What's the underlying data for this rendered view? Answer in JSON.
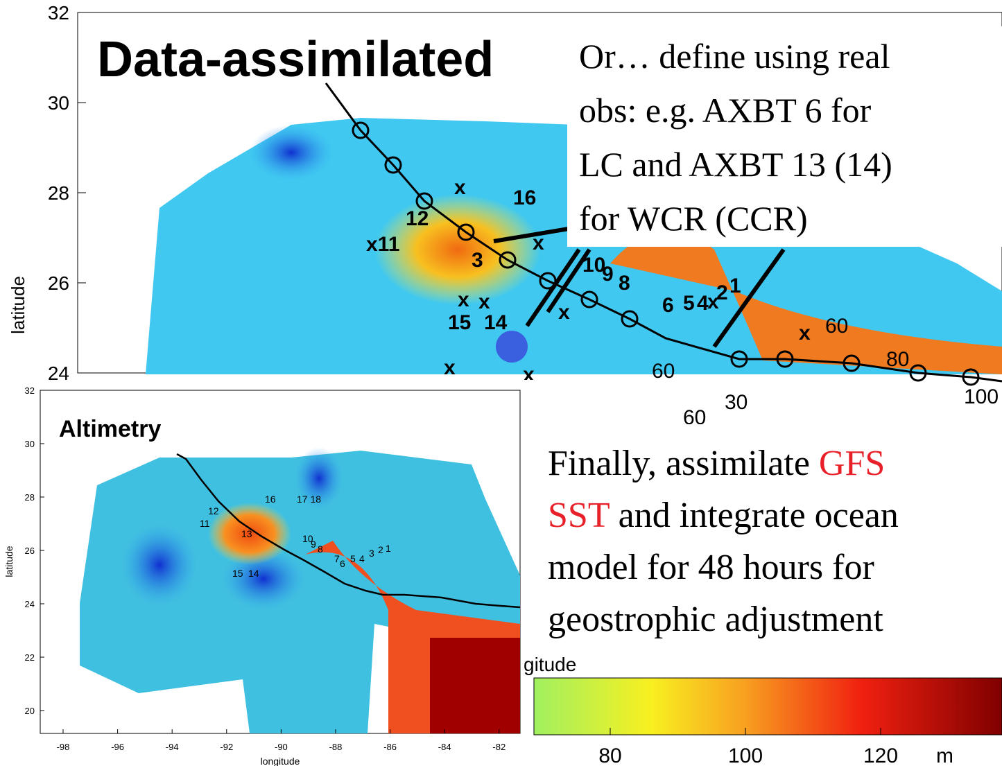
{
  "main_map": {
    "title": "Data-assimilated",
    "y_axis_label": "latitude",
    "y_ticks": [
      "24",
      "26",
      "28",
      "30",
      "32"
    ],
    "station_labels": [
      "x",
      "16",
      "12",
      "x11",
      "x",
      "3",
      "10",
      "9",
      "8",
      "6",
      "5",
      "4",
      "x",
      "2",
      "1",
      "x",
      "x",
      "x",
      "15",
      "14",
      "x",
      "x",
      "x"
    ],
    "contour_labels": [
      "60",
      "60",
      "80",
      "100",
      "60",
      "30"
    ]
  },
  "callout_top": {
    "lines": [
      "Or… define using real",
      "obs: e.g. AXBT 6 for",
      "LC and AXBT 13 (14)",
      "for WCR (CCR)"
    ]
  },
  "callout_bottom": {
    "lines": [
      [
        "Finally, assimilate ",
        "GFS"
      ],
      [
        "SST",
        " and integrate ocean"
      ],
      [
        "model for 48 hours for"
      ],
      [
        "geostrophic adjustment"
      ]
    ]
  },
  "inset_map": {
    "title": "Altimetry",
    "x_axis_label": "longitude",
    "y_axis_label": "latitude",
    "x_ticks": [
      "-98",
      "-96",
      "-94",
      "-92",
      "-90",
      "-88",
      "-86",
      "-84",
      "-82"
    ],
    "y_ticks": [
      "20",
      "22",
      "24",
      "26",
      "28",
      "30",
      "32"
    ],
    "station_labels": [
      "16",
      "17 18",
      "12",
      "11",
      "13",
      "10",
      "9",
      "8",
      "7",
      "6",
      "5",
      "4",
      "3",
      "2",
      "1",
      "15",
      "14"
    ]
  },
  "partial_axis_label": "gitude",
  "colorbar": {
    "ticks": [
      "80",
      "100",
      "120"
    ],
    "unit": "m"
  }
}
